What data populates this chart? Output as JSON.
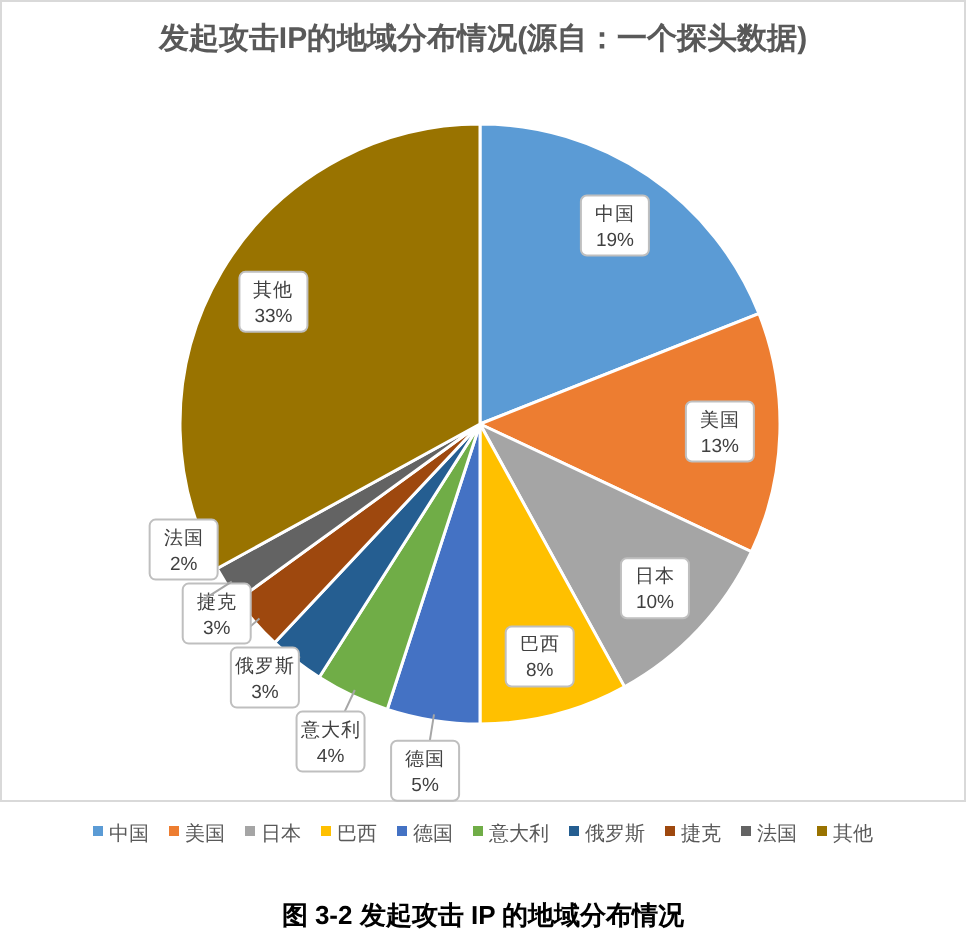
{
  "chart_data": {
    "type": "pie",
    "title": "发起攻击IP的地域分布情况(源自：一个探头数据)",
    "categories": [
      "中国",
      "美国",
      "日本",
      "巴西",
      "德国",
      "意大利",
      "俄罗斯",
      "捷克",
      "法国",
      "其他"
    ],
    "values": [
      19,
      13,
      10,
      8,
      5,
      4,
      3,
      3,
      2,
      33
    ],
    "value_labels": [
      "19%",
      "13%",
      "10%",
      "8%",
      "5%",
      "4%",
      "3%",
      "3%",
      "2%",
      "33%"
    ],
    "colors": [
      "#5b9bd5",
      "#ed7d31",
      "#a5a5a5",
      "#ffc000",
      "#4472c4",
      "#70ad47",
      "#255e91",
      "#9e480e",
      "#636363",
      "#997300"
    ],
    "legend": "bottom",
    "annotations": [
      "图 3-2 发起攻击 IP 的地域分布情况"
    ]
  }
}
